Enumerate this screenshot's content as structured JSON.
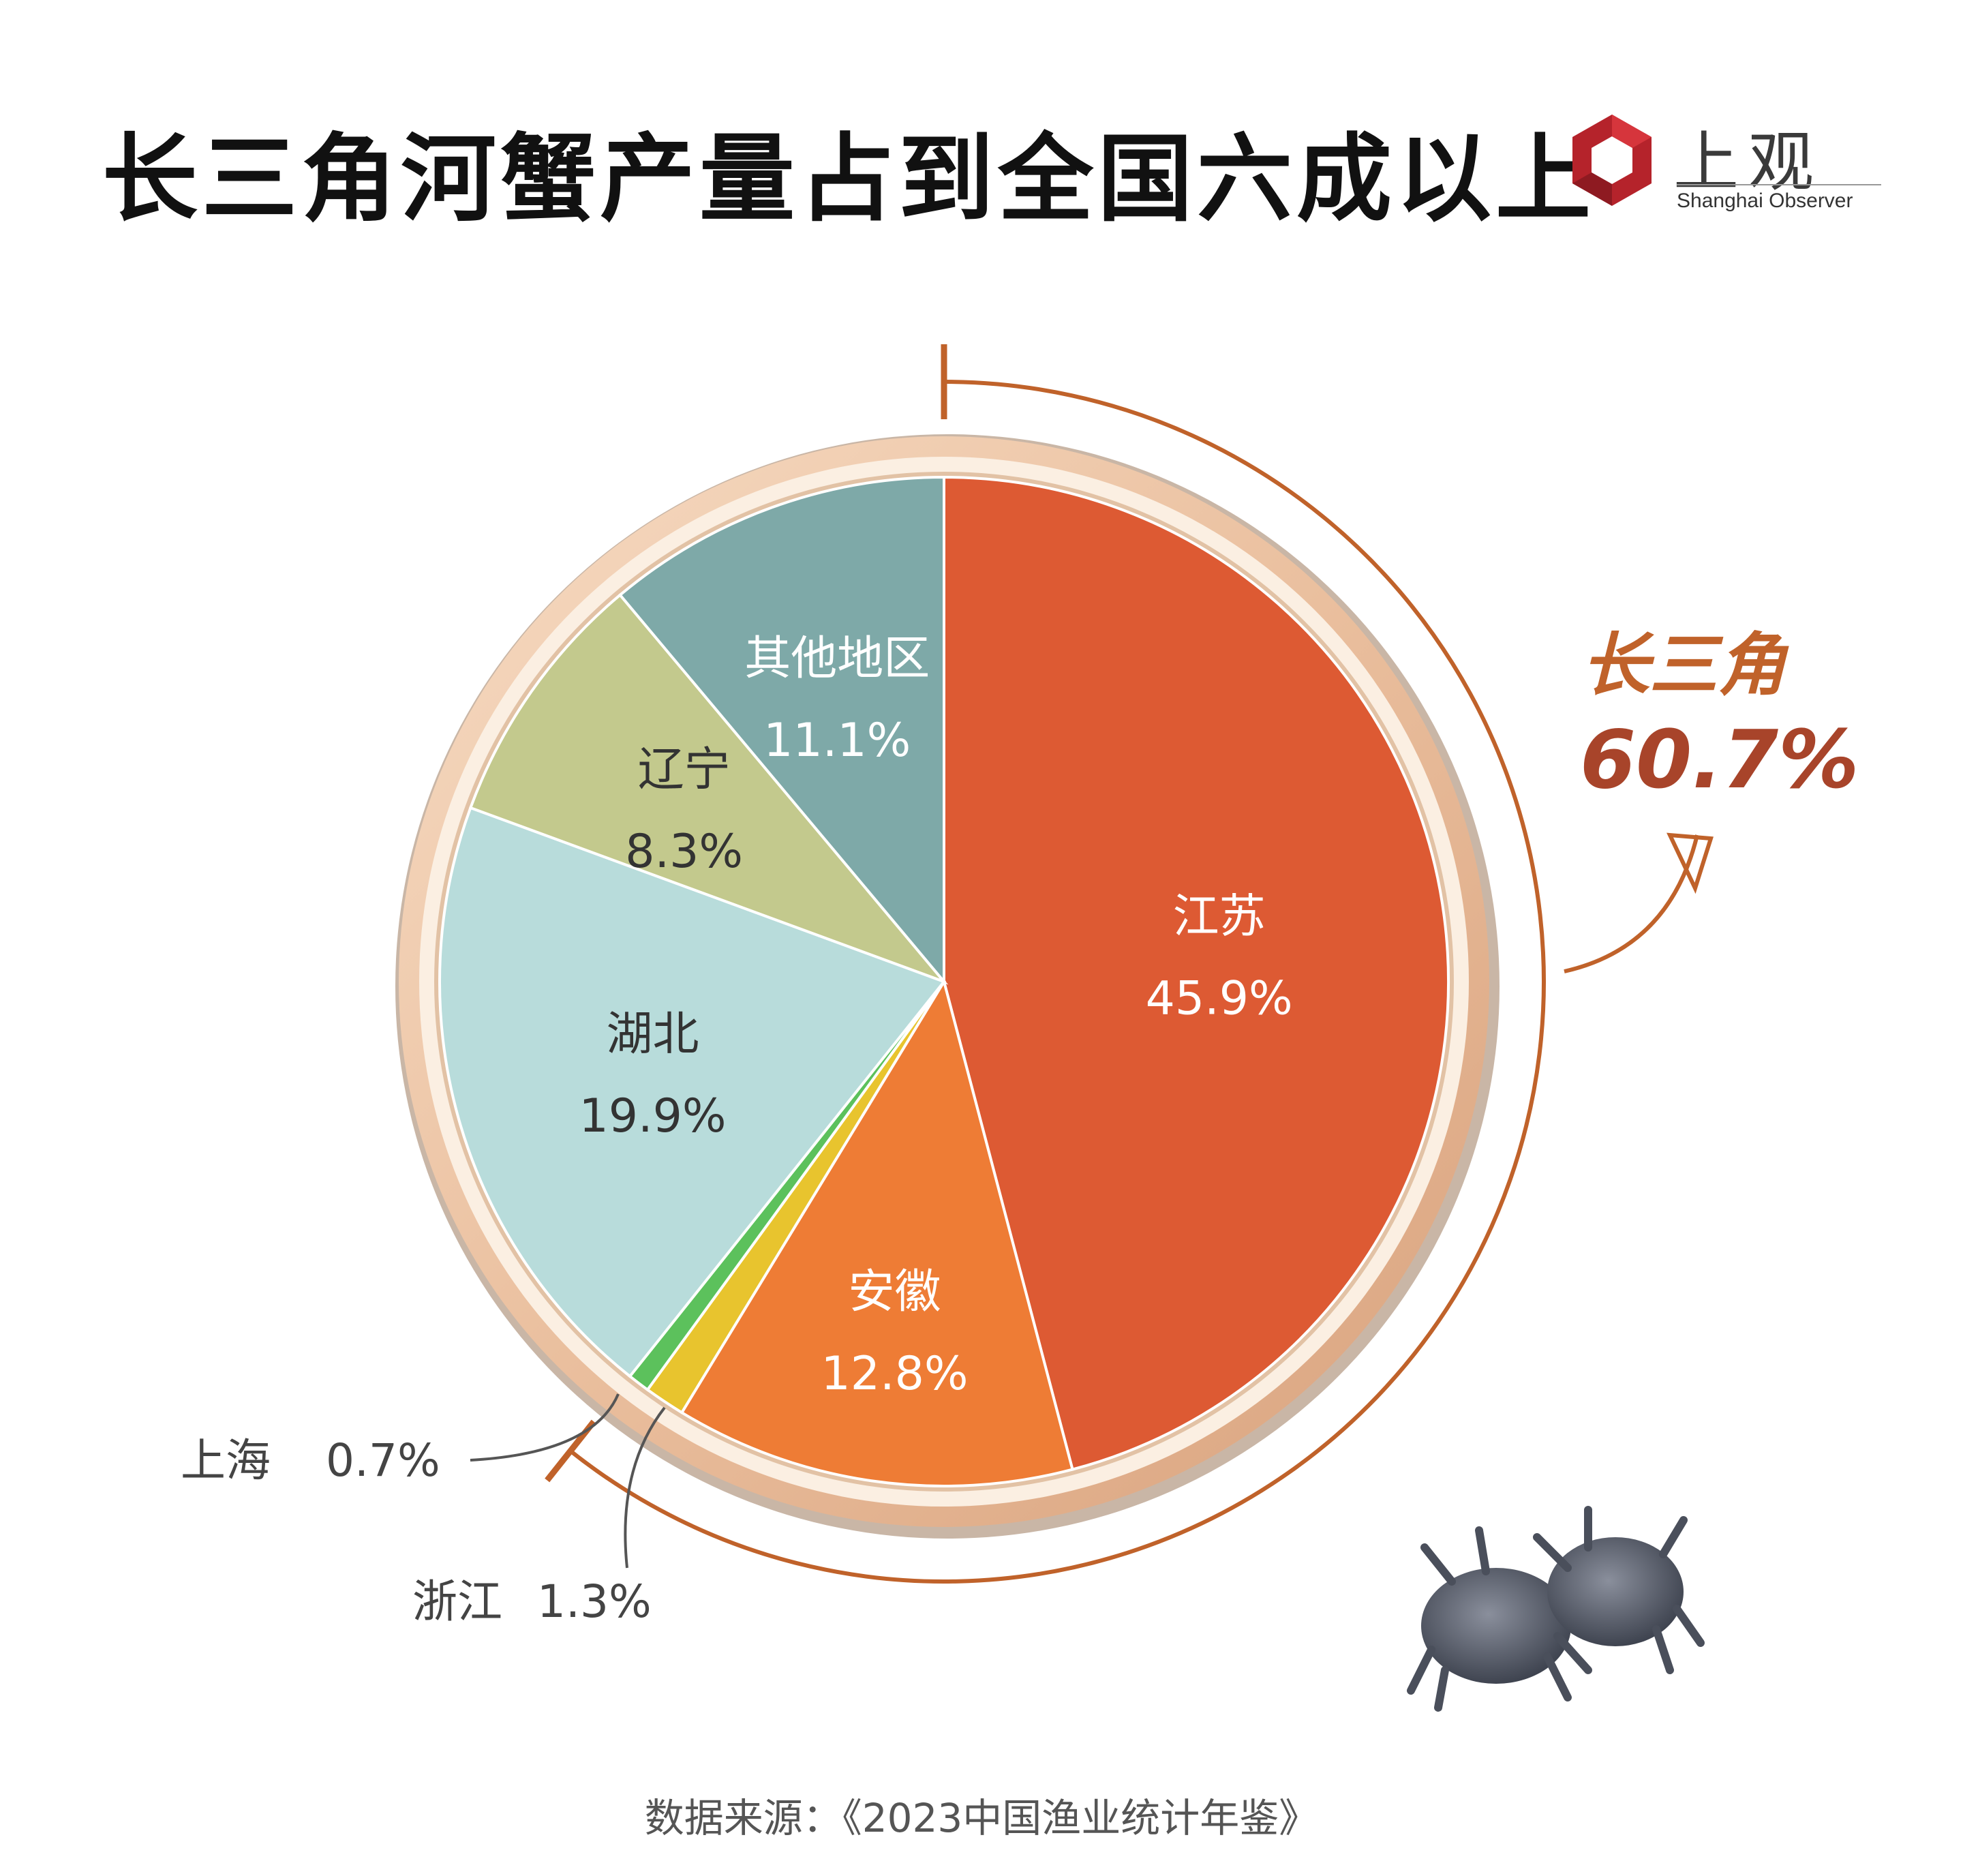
{
  "title": "长三角河蟹产量占到全国六成以上",
  "logo": {
    "text": "上观",
    "subtitle": "Shanghai Observer",
    "color": "#b5232b"
  },
  "source": "数据来源：《2023中国渔业统计年鉴》",
  "group": {
    "name": "长三角",
    "value_label": "60.7%",
    "color": "#c0622a",
    "value_color": "#a8442a"
  },
  "chart_data": {
    "type": "pie",
    "slices": [
      {
        "label": "江苏",
        "value": 45.9,
        "value_label": "45.9%",
        "color": "#dd5a33",
        "label_color": "#ffffff"
      },
      {
        "label": "安徽",
        "value": 12.8,
        "value_label": "12.8%",
        "color": "#ee7c35",
        "label_color": "#ffffff"
      },
      {
        "label": "浙江",
        "value": 1.3,
        "value_label": "1.3%",
        "color": "#e8c42e",
        "label_color": "#444444"
      },
      {
        "label": "上海",
        "value": 0.7,
        "value_label": "0.7%",
        "color": "#5cc15c",
        "label_color": "#444444"
      },
      {
        "label": "湖北",
        "value": 19.9,
        "value_label": "19.9%",
        "color": "#b8dcdb",
        "label_color": "#333333"
      },
      {
        "label": "辽宁",
        "value": 8.3,
        "value_label": "8.3%",
        "color": "#c3c98d",
        "label_color": "#333333"
      },
      {
        "label": "其他地区",
        "value": 11.1,
        "value_label": "11.1%",
        "color": "#7ea9a8",
        "label_color": "#ffffff"
      }
    ]
  }
}
